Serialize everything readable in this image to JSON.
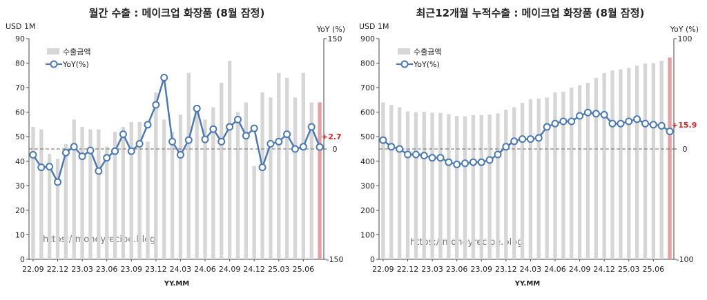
{
  "charts": [
    {
      "title": "월간 수출 : 메이크업 화장품 (8월 잠정)",
      "left_unit": "USD 1M",
      "right_unit": "YoY (%)",
      "xlabel": "YY.MM",
      "watermark": "https://moneyrecipe.blog",
      "last_label": "+2.7",
      "left_ticks": [
        "0",
        "10",
        "20",
        "30",
        "40",
        "50",
        "60",
        "70",
        "80",
        "90"
      ],
      "right_ticks": [
        "150",
        "0",
        "-150"
      ],
      "x_ticks": [
        "22.09",
        "22.12",
        "23.03",
        "23.06",
        "23.09",
        "23.12",
        "24.03",
        "24.06",
        "24.09",
        "24.12",
        "25.03",
        "25.06"
      ],
      "legend": {
        "bar": "수출금액",
        "line": "YoY(%)"
      }
    },
    {
      "title": "최근12개월 누적수출 : 메이크업 화장품 (8월 잠정)",
      "left_unit": "USD 1M",
      "right_unit": "YoY (%)",
      "xlabel": "YY.MM",
      "watermark": "https://moneyrecipe.blog",
      "last_label": "+15.9",
      "left_ticks": [
        "0",
        "100",
        "200",
        "300",
        "400",
        "500",
        "600",
        "700",
        "800",
        "900"
      ],
      "right_ticks": [
        "100",
        "0",
        "-100"
      ],
      "x_ticks": [
        "22.09",
        "22.12",
        "23.03",
        "23.06",
        "23.09",
        "23.12",
        "24.03",
        "24.06",
        "24.09",
        "24.12",
        "25.03",
        "25.06"
      ],
      "legend": {
        "bar": "수출금액",
        "line": "YoY(%)"
      }
    }
  ],
  "chart_data": [
    {
      "type": "bar",
      "title": "월간 수출 : 메이크업 화장품 (8월 잠정)",
      "categories": [
        "22.09",
        "22.10",
        "22.11",
        "22.12",
        "23.01",
        "23.02",
        "23.03",
        "23.04",
        "23.05",
        "23.06",
        "23.07",
        "23.08",
        "23.09",
        "23.10",
        "23.11",
        "23.12",
        "24.01",
        "24.02",
        "24.03",
        "24.04",
        "24.05",
        "24.06",
        "24.07",
        "24.08",
        "24.09",
        "24.10",
        "24.11",
        "24.12",
        "25.01",
        "25.02",
        "25.03",
        "25.04",
        "25.05",
        "25.06",
        "25.07",
        "25.08"
      ],
      "series": [
        {
          "name": "수출금액",
          "axis": "left",
          "values": [
            54,
            53,
            43,
            41,
            47,
            57,
            54,
            53,
            53,
            46,
            52,
            54,
            56,
            56,
            48,
            68,
            57,
            52,
            59,
            76,
            63,
            57,
            62,
            72,
            81,
            60,
            64,
            38,
            68,
            66,
            76,
            74,
            66,
            76,
            64,
            64
          ]
        },
        {
          "name": "YoY(%)",
          "axis": "right",
          "type": "line",
          "values": [
            -8,
            -25,
            -24,
            -45,
            -5,
            3,
            -10,
            -2,
            -30,
            -12,
            -3,
            20,
            -3,
            7,
            33,
            60,
            97,
            10,
            -8,
            12,
            55,
            13,
            27,
            10,
            30,
            40,
            18,
            28,
            -25,
            7,
            10,
            20,
            0,
            3,
            30,
            2.7
          ]
        }
      ],
      "ylim_left": [
        0,
        90
      ],
      "ylim_right": [
        -150,
        150
      ]
    },
    {
      "type": "bar",
      "title": "최근12개월 누적수출 : 메이크업 화장품 (8월 잠정)",
      "categories": [
        "22.09",
        "22.10",
        "22.11",
        "22.12",
        "23.01",
        "23.02",
        "23.03",
        "23.04",
        "23.05",
        "23.06",
        "23.07",
        "23.08",
        "23.09",
        "23.10",
        "23.11",
        "23.12",
        "24.01",
        "24.02",
        "24.03",
        "24.04",
        "24.05",
        "24.06",
        "24.07",
        "24.08",
        "24.09",
        "24.10",
        "24.11",
        "24.12",
        "25.01",
        "25.02",
        "25.03",
        "25.04",
        "25.05",
        "25.06",
        "25.07",
        "25.08"
      ],
      "series": [
        {
          "name": "수출금액",
          "axis": "left",
          "values": [
            640,
            630,
            620,
            603,
            600,
            602,
            598,
            597,
            592,
            585,
            583,
            588,
            588,
            590,
            595,
            610,
            620,
            638,
            653,
            655,
            660,
            680,
            683,
            700,
            710,
            720,
            740,
            760,
            770,
            775,
            780,
            790,
            798,
            800,
            810,
            823
          ]
        },
        {
          "name": "YoY(%)",
          "axis": "right",
          "type": "line",
          "values": [
            8,
            2,
            0,
            -5,
            -5,
            -6,
            -8,
            -8,
            -12,
            -14,
            -13,
            -12,
            -12,
            -10,
            -5,
            2,
            7,
            9,
            9,
            10,
            20,
            23,
            25,
            25,
            30,
            33,
            32,
            31,
            23,
            23,
            25,
            27,
            23,
            22,
            21,
            15.9
          ]
        }
      ],
      "ylim_left": [
        0,
        900
      ],
      "ylim_right": [
        -100,
        100
      ]
    }
  ]
}
